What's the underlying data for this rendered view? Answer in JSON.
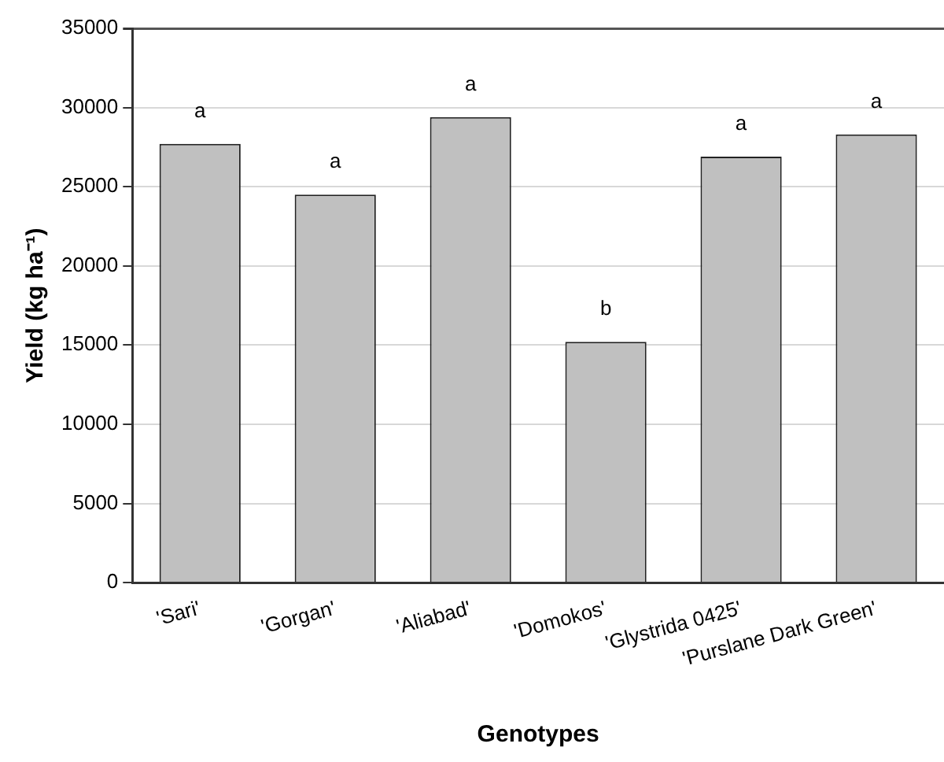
{
  "chart_data": {
    "type": "bar",
    "xlabel": "Genotypes",
    "ylabel": "Yield (kg ha⁻¹)",
    "categories": [
      "'Sari'",
      "'Gorgan'",
      "'Aliabad'",
      "'Domokos'",
      "'Glystrida 0425'",
      "'Purslane Dark Green'"
    ],
    "values": [
      27700,
      24500,
      29400,
      15200,
      26900,
      28300
    ],
    "color": "#c0c0c0",
    "ylim": [
      0,
      35000
    ],
    "yticks": [
      0,
      5000,
      10000,
      15000,
      20000,
      25000,
      30000,
      35000
    ],
    "grid": "y",
    "legend": false,
    "annotations": [
      "a",
      "a",
      "a",
      "b",
      "a",
      "a"
    ]
  }
}
